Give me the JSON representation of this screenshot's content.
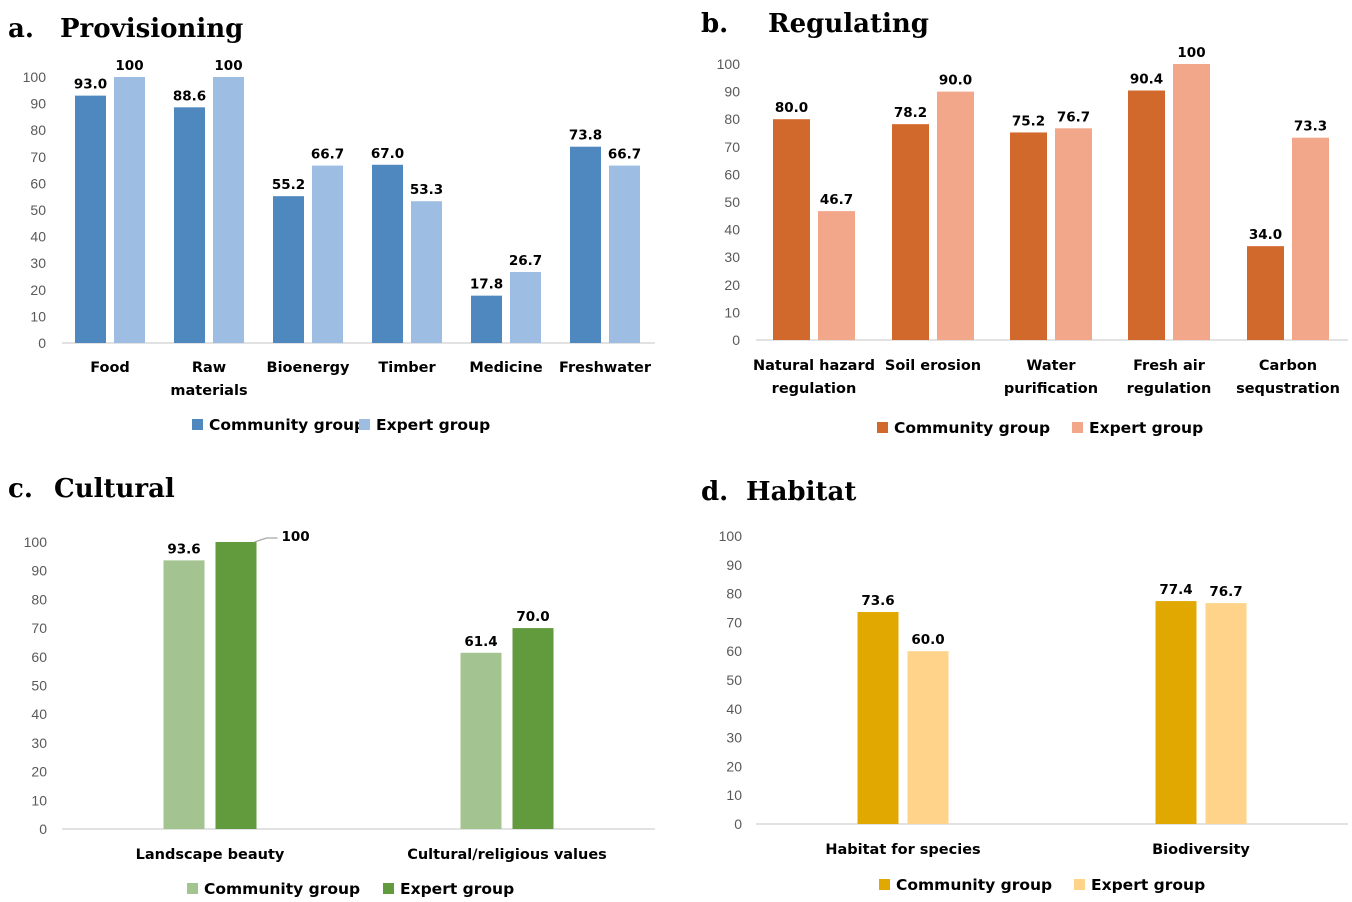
{
  "legend": {
    "community": "Community group",
    "expert": "Expert group"
  },
  "chart_data": [
    {
      "type": "bar",
      "panel": "a.",
      "title": "Provisioning",
      "categories": [
        "Food",
        "Raw|materials",
        "Bioenergy",
        "Timber",
        "Medicine",
        "Freshwater"
      ],
      "series": [
        {
          "name": "Community group",
          "values": [
            93.0,
            88.6,
            55.2,
            67.0,
            17.8,
            73.8
          ],
          "labels": [
            "93.0",
            "88.6",
            "55.2",
            "67.0",
            "17.8",
            "73.8"
          ]
        },
        {
          "name": "Expert group",
          "values": [
            100,
            100,
            66.7,
            53.3,
            26.7,
            66.7
          ],
          "labels": [
            "100",
            "100",
            "66.7",
            "53.3",
            "26.7",
            "66.7"
          ]
        }
      ],
      "yticks": [
        "0",
        "10",
        "20",
        "30",
        "40",
        "50",
        "60",
        "70",
        "80",
        "90",
        "100"
      ],
      "ylim": [
        0,
        100
      ],
      "colors": [
        "#4f88bf",
        "#9dbde3"
      ]
    },
    {
      "type": "bar",
      "panel": "b.",
      "title": "Regulating",
      "categories": [
        "Natural hazard|regulation",
        "Soil erosion",
        "Water|purification",
        "Fresh air|regulation",
        "Carbon|sequstration"
      ],
      "series": [
        {
          "name": "Community group",
          "values": [
            80.0,
            78.2,
            75.2,
            90.4,
            34.0
          ],
          "labels": [
            "80.0",
            "78.2",
            "75.2",
            "90.4",
            "34.0"
          ]
        },
        {
          "name": "Expert group",
          "values": [
            46.7,
            90.0,
            76.7,
            100,
            73.3
          ],
          "labels": [
            "46.7",
            "90.0",
            "76.7",
            "100",
            "73.3"
          ]
        }
      ],
      "yticks": [
        "0",
        "10",
        "20",
        "30",
        "40",
        "50",
        "60",
        "70",
        "80",
        "90",
        "100"
      ],
      "ylim": [
        0,
        100
      ],
      "colors": [
        "#d2692c",
        "#f2a78a"
      ]
    },
    {
      "type": "bar",
      "panel": "c.",
      "title": "Cultural",
      "categories": [
        "Landscape beauty",
        "Cultural/religious values"
      ],
      "series": [
        {
          "name": "Community group",
          "values": [
            93.6,
            61.4
          ],
          "labels": [
            "93.6",
            "61.4"
          ]
        },
        {
          "name": "Expert group",
          "values": [
            100,
            70.0
          ],
          "labels": [
            "100",
            "70.0"
          ]
        }
      ],
      "yticks": [
        "0",
        "10",
        "20",
        "30",
        "40",
        "50",
        "60",
        "70",
        "80",
        "90",
        "100"
      ],
      "ylim": [
        0,
        100
      ],
      "colors": [
        "#a3c491",
        "#629a3e"
      ]
    },
    {
      "type": "bar",
      "panel": "d.",
      "title": "Habitat",
      "categories": [
        "Habitat for species",
        "Biodiversity"
      ],
      "series": [
        {
          "name": "Community group",
          "values": [
            73.6,
            77.4
          ],
          "labels": [
            "73.6",
            "77.4"
          ]
        },
        {
          "name": "Expert group",
          "values": [
            60.0,
            76.7
          ],
          "labels": [
            "60.0",
            "76.7"
          ]
        }
      ],
      "yticks": [
        "0",
        "10",
        "20",
        "30",
        "40",
        "50",
        "60",
        "70",
        "80",
        "90",
        "100"
      ],
      "ylim": [
        0,
        100
      ],
      "colors": [
        "#e0a800",
        "#ffd38a"
      ]
    }
  ]
}
